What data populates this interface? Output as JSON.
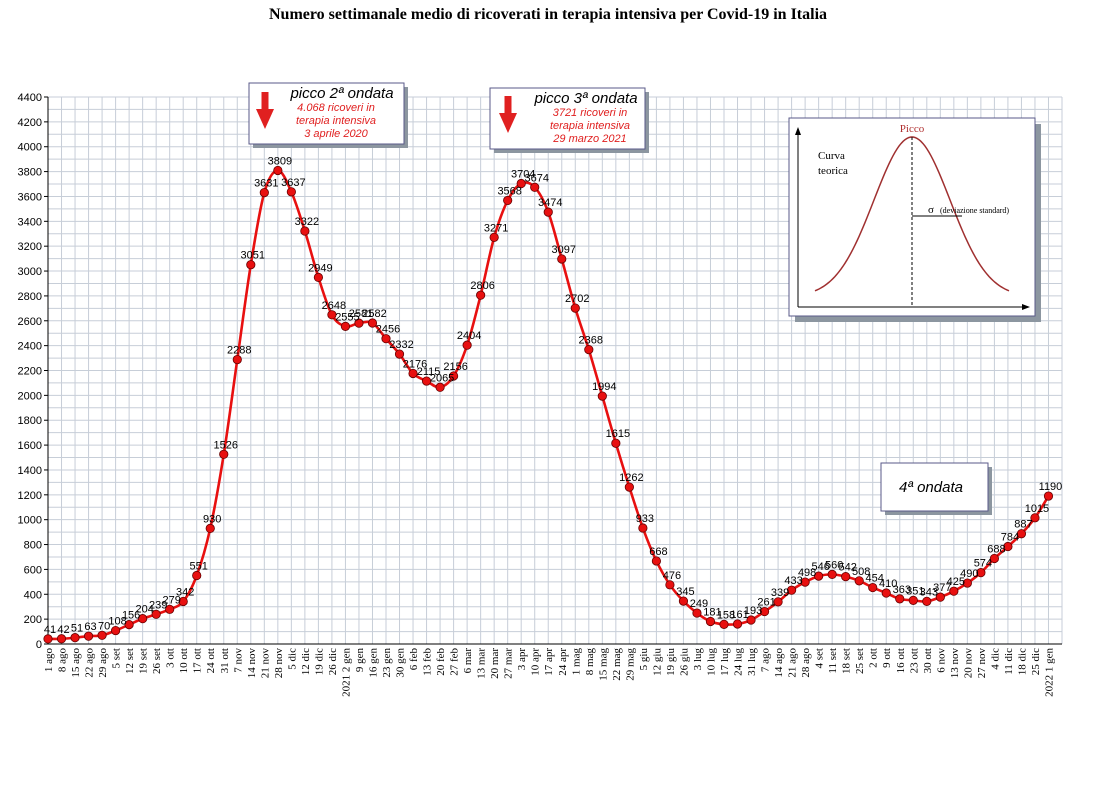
{
  "chart_data": {
    "type": "line",
    "title": "Numero settimanale medio di ricoverati in terapia intensiva per Covid-19 in Italia",
    "xlabel": "",
    "ylabel": "",
    "ylim": [
      0,
      4400
    ],
    "yticks": [
      0,
      200,
      400,
      600,
      800,
      1000,
      1200,
      1400,
      1600,
      1800,
      2000,
      2200,
      2400,
      2600,
      2800,
      3000,
      3200,
      3400,
      3600,
      3800,
      4000,
      4200,
      4400
    ],
    "grid": true,
    "line_color": "#e81010",
    "marker_color": "#e81010",
    "categories": [
      "1 ago",
      "8 ago",
      "15 ago",
      "22 ago",
      "29 ago",
      "5 set",
      "12 set",
      "19 set",
      "26 set",
      "3 ott",
      "10 ott",
      "17 ott",
      "24 ott",
      "31 ott",
      "7 nov",
      "14 nov",
      "21 nov",
      "28 nov",
      "5 dic",
      "12 dic",
      "19 dic",
      "26 dic",
      "2021 2 gen",
      "9 gen",
      "16 gen",
      "23 gen",
      "30 gen",
      "6 feb",
      "13 feb",
      "20 feb",
      "27 feb",
      "6 mar",
      "13 mar",
      "20 mar",
      "27 mar",
      "3 apr",
      "10 apr",
      "17 apr",
      "24 apr",
      "1 mag",
      "8 mag",
      "15 mag",
      "22 mag",
      "29 mag",
      "5 giu",
      "12 giu",
      "19 giu",
      "26 giu",
      "3 lug",
      "10 lug",
      "17 lug",
      "24 lug",
      "31 lug",
      "7 ago",
      "14 ago",
      "21 ago",
      "28 ago",
      "4 set",
      "11 set",
      "18 set",
      "25 set",
      "2 ott",
      "9 ott",
      "16 ott",
      "23 ott",
      "30 ott",
      "6 nov",
      "13 nov",
      "20 nov",
      "27 nov",
      "4 dic",
      "11 dic",
      "18 dic",
      "25 dic",
      "2022 1 gen"
    ],
    "series": [
      {
        "values": [
          41,
          42,
          51,
          63,
          70,
          108,
          156,
          204,
          239,
          279,
          342,
          551,
          930,
          1526,
          2288,
          3051,
          3631,
          3809,
          3637,
          3322,
          2949,
          2648,
          2555,
          2581,
          2582,
          2456,
          2332,
          2176,
          2115,
          2065,
          2156,
          2404,
          2806,
          3271,
          3568,
          3704,
          3674,
          3474,
          3097,
          2702,
          2368,
          1994,
          1615,
          1262,
          933,
          668,
          476,
          345,
          249,
          181,
          158,
          161,
          193,
          261,
          339,
          433,
          498,
          546,
          560,
          542,
          508,
          454,
          410,
          363,
          351,
          343,
          377,
          425,
          490,
          574,
          688,
          784,
          887,
          1015,
          1190
        ],
        "labels": [
          "41",
          "42",
          "51",
          "63",
          "70",
          "108",
          "156",
          "204",
          "239",
          "279",
          "342",
          "551",
          "930",
          "1526",
          "2288",
          "3051",
          "3631",
          "3809",
          "3637",
          "3322",
          "2949",
          "2648",
          "2555",
          "2581",
          "2582",
          "2456",
          "2332",
          "2176",
          "2115",
          "2065",
          "2156",
          "2404",
          "2806",
          "3271",
          "3568",
          "3704",
          "3674",
          "3474",
          "3097",
          "2702",
          "2368",
          "1994",
          "1615",
          "1262",
          "933",
          "668",
          "476",
          "345",
          "249",
          "181",
          "158",
          "161",
          "193",
          "261",
          "339",
          "433",
          "498",
          "546",
          "560",
          "542",
          "508",
          "454",
          "410",
          "363",
          "351",
          "343",
          "377",
          "425",
          "490",
          "574",
          "688",
          "784",
          "887",
          "1015",
          "1190"
        ]
      }
    ],
    "annotations": [
      {
        "heading": "picco 2ª ondata",
        "lines": [
          "4.068 ricoveri in",
          "terapia intensiva",
          "3 aprile 2020"
        ]
      },
      {
        "heading": "picco 3ª ondata",
        "lines": [
          "3721 ricoveri in",
          "terapia intensiva",
          "29 marzo 2021"
        ]
      },
      {
        "heading": "4ª ondata",
        "lines": []
      }
    ],
    "inset": {
      "peak_label": "Picco",
      "curve_label_1": "Curva",
      "curve_label_2": "teorica",
      "sigma_label": "σ",
      "sigma_desc": "(deviazione standard)",
      "curve_color": "#a03030"
    }
  }
}
